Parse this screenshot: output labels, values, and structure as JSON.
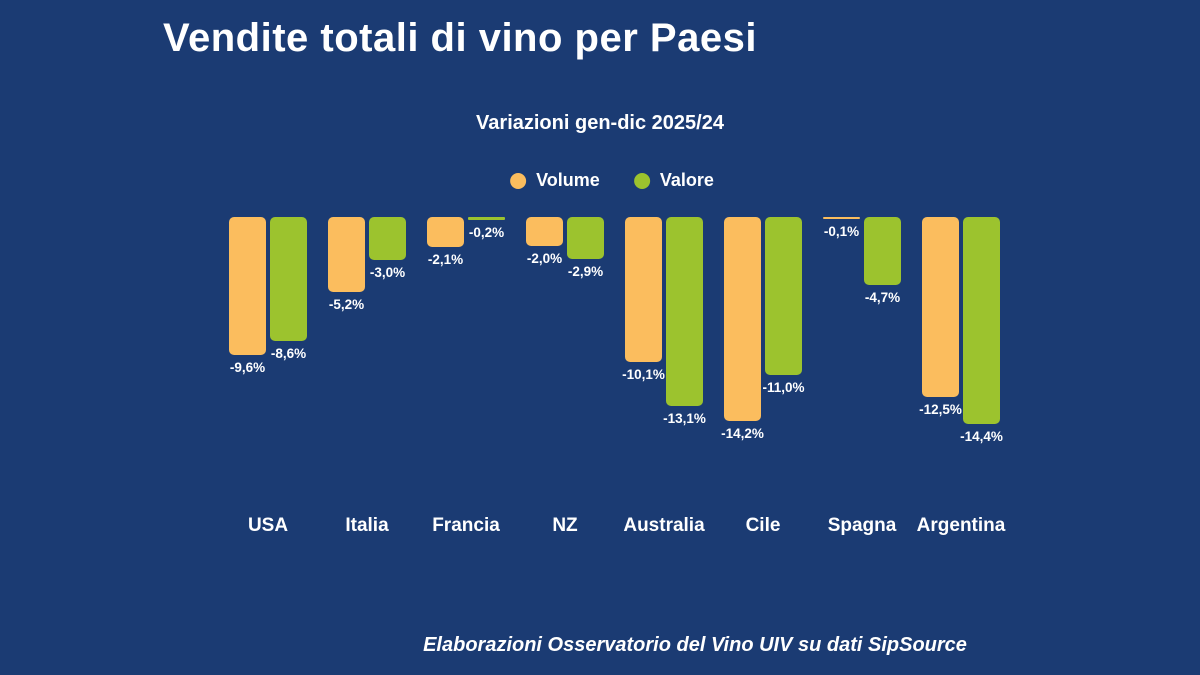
{
  "title": "Vendite totali di vino per Paesi",
  "subtitle": "Variazioni gen-dic 2025/24",
  "legend": {
    "volume": {
      "label": "Volume",
      "color": "#fbbd5e"
    },
    "valore": {
      "label": "Valore",
      "color": "#9cc32e"
    }
  },
  "footer": "Elaborazioni Osservatorio del Vino UIV su dati SipSource",
  "colors": {
    "background": "#1b3b73",
    "text": "#ffffff",
    "volume": "#fbbd5e",
    "valore": "#9cc32e"
  },
  "chart_data": {
    "type": "bar",
    "title": "Vendite totali di vino per Paesi",
    "subtitle": "Variazioni gen-dic 2025/24",
    "categories": [
      "USA",
      "Italia",
      "Francia",
      "NZ",
      "Australia",
      "Cile",
      "Spagna",
      "Argentina"
    ],
    "series": [
      {
        "name": "Volume",
        "values": [
          -9.6,
          -5.2,
          -2.1,
          -2.0,
          -10.1,
          -14.2,
          -0.1,
          -12.5
        ]
      },
      {
        "name": "Valore",
        "values": [
          -8.6,
          -3.0,
          -0.2,
          -2.9,
          -13.1,
          -11.0,
          -4.7,
          -14.4
        ]
      }
    ],
    "value_labels": [
      [
        "-9,6%",
        "-5,2%",
        "-2,1%",
        "-2,0%",
        "-10,1%",
        "-14,2%",
        "-0,1%",
        "-12,5%"
      ],
      [
        "-8,6%",
        "-3,0%",
        "-0,2%",
        "-2,9%",
        "-13,1%",
        "-11,0%",
        "-4,7%",
        "-14,4%"
      ]
    ],
    "ylim": [
      -15,
      0
    ],
    "orientation": "vertical_from_top_baseline",
    "grid": false,
    "legend_position": "top-center",
    "unit": "%"
  }
}
